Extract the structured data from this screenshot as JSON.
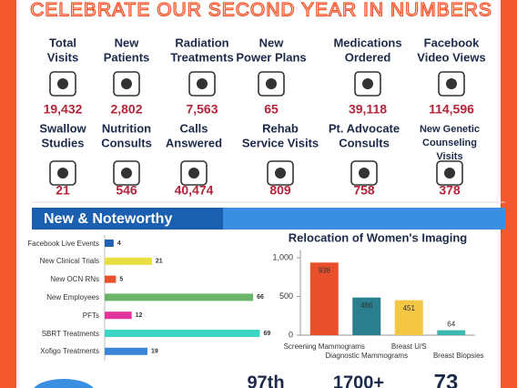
{
  "header": {
    "title": "CELEBRATE OUR SECOND YEAR IN NUMBERS"
  },
  "stats": [
    [
      {
        "label": [
          "Total",
          "Visits"
        ],
        "value": "19,432"
      },
      {
        "label": [
          "New",
          "Patients"
        ],
        "value": "2,802"
      },
      {
        "label": [
          "Radiation",
          "Treatments"
        ],
        "value": "7,563"
      },
      {
        "label": [
          "New",
          "Power Plans"
        ],
        "value": "65"
      },
      {
        "label": [
          "Medications",
          "Ordered"
        ],
        "value": "39,118"
      },
      {
        "label": [
          "Facebook",
          "Video Views"
        ],
        "value": "114,596"
      }
    ],
    [
      {
        "label": [
          "Swallow",
          "Studies"
        ],
        "value": "21"
      },
      {
        "label": [
          "Nutrition",
          "Consults"
        ],
        "value": "546"
      },
      {
        "label": [
          "Calls",
          "Answered"
        ],
        "value": "40,474"
      },
      {
        "label": [
          "Rehab",
          "Service Visits"
        ],
        "value": "809"
      },
      {
        "label": [
          "Pt. Advocate",
          "Consults"
        ],
        "value": "758"
      },
      {
        "label": [
          "New Genetic",
          "Counseling",
          "Visits"
        ],
        "value": "378"
      }
    ]
  ],
  "section_title": "New & Noteworthy",
  "chart_data": [
    {
      "type": "hbar",
      "categories": [
        "Facebook Live Events",
        "New Clinical Trials",
        "New OCN RNs",
        "New Employees",
        "PFTs",
        "SBRT Treatments",
        "Xofigo Treatments"
      ],
      "values": [
        4,
        21,
        5,
        66,
        12,
        69,
        19
      ],
      "colors": [
        "#1f5fb5",
        "#e8e040",
        "#e8502c",
        "#6ab56a",
        "#e0359a",
        "#3dd6c4",
        "#3a86d6"
      ],
      "xlim": [
        0,
        70
      ]
    },
    {
      "type": "bar",
      "title": "Relocation of  Women's Imaging",
      "categories": [
        "Screening Mammograms",
        "Diagnostic Mammograms",
        "Breast U/S",
        "Breast Biopsies"
      ],
      "values": [
        938,
        486,
        451,
        64
      ],
      "colors": [
        "#e8502c",
        "#2a7f8f",
        "#f3c744",
        "#3bb8b0"
      ],
      "ylim": [
        0,
        1100
      ],
      "yticks": [
        0,
        500,
        {
          "value": 1000,
          "label": "1,000"
        }
      ]
    }
  ],
  "footer_stats": [
    "97th",
    "1700+",
    "73"
  ]
}
